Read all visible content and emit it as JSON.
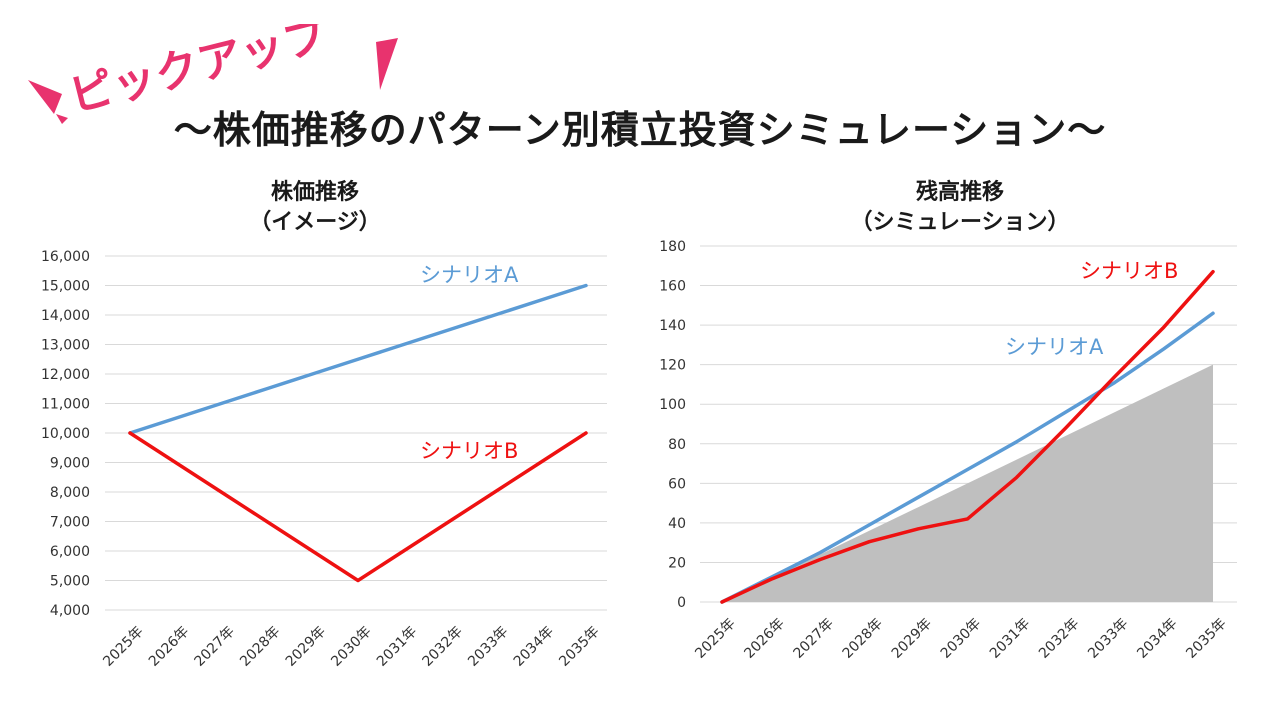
{
  "banner": {
    "label": "ピックアップ"
  },
  "title": "〜株価推移のパターン別積立投資シミュレーション〜",
  "colors": {
    "scenario_a": "#5B9BD5",
    "scenario_b": "#EE1111",
    "area": "#BFBFBF",
    "grid": "#D9D9D9",
    "accent": "#E8336E"
  },
  "chart_data": [
    {
      "type": "line",
      "title_lines": [
        "株価推移",
        "（イメージ）"
      ],
      "categories": [
        "2025年",
        "2026年",
        "2027年",
        "2028年",
        "2029年",
        "2030年",
        "2031年",
        "2032年",
        "2033年",
        "2034年",
        "2035年"
      ],
      "ylim": [
        4000,
        16000
      ],
      "yticks": [
        4000,
        5000,
        6000,
        7000,
        8000,
        9000,
        10000,
        11000,
        12000,
        13000,
        14000,
        15000,
        16000
      ],
      "ytick_labels": [
        "4,000",
        "5,000",
        "6,000",
        "7,000",
        "8,000",
        "9,000",
        "10,000",
        "11,000",
        "12,000",
        "13,000",
        "14,000",
        "15,000",
        "16,000"
      ],
      "grid": true,
      "series": [
        {
          "name": "シナリオA",
          "color": "#5B9BD5",
          "values": [
            10000,
            10500,
            11000,
            11500,
            12000,
            12500,
            13000,
            13500,
            14000,
            14500,
            15000
          ]
        },
        {
          "name": "シナリオB",
          "color": "#EE1111",
          "values": [
            10000,
            9000,
            8000,
            7000,
            6000,
            5000,
            6000,
            7000,
            8000,
            9000,
            10000
          ]
        }
      ],
      "annotations": [
        {
          "text": "シナリオA",
          "series": 0
        },
        {
          "text": "シナリオB",
          "series": 1
        }
      ]
    },
    {
      "type": "line",
      "title_lines": [
        "残高推移",
        "（シミュレーション）"
      ],
      "categories": [
        "2025年",
        "2026年",
        "2027年",
        "2028年",
        "2029年",
        "2030年",
        "2031年",
        "2032年",
        "2033年",
        "2034年",
        "2035年"
      ],
      "ylim": [
        0,
        180
      ],
      "yticks": [
        0,
        20,
        40,
        60,
        80,
        100,
        120,
        140,
        160,
        180
      ],
      "ytick_labels": [
        "0",
        "20",
        "40",
        "60",
        "80",
        "100",
        "120",
        "140",
        "160",
        "180"
      ],
      "grid": true,
      "area": {
        "color": "#BFBFBF",
        "values": [
          0,
          12,
          24,
          36,
          48,
          60,
          72,
          84,
          96,
          108,
          120
        ]
      },
      "series": [
        {
          "name": "シナリオA",
          "color": "#5B9BD5",
          "values": [
            0,
            12.5,
            25,
            39,
            53,
            67,
            81,
            96,
            111,
            128,
            146
          ]
        },
        {
          "name": "シナリオB",
          "color": "#EE1111",
          "values": [
            0,
            11.5,
            21.5,
            30.5,
            37,
            42,
            63,
            88,
            114,
            139,
            167
          ]
        }
      ],
      "annotations": [
        {
          "text": "シナリオB",
          "series": 1
        },
        {
          "text": "シナリオA",
          "series": 0
        }
      ]
    }
  ]
}
